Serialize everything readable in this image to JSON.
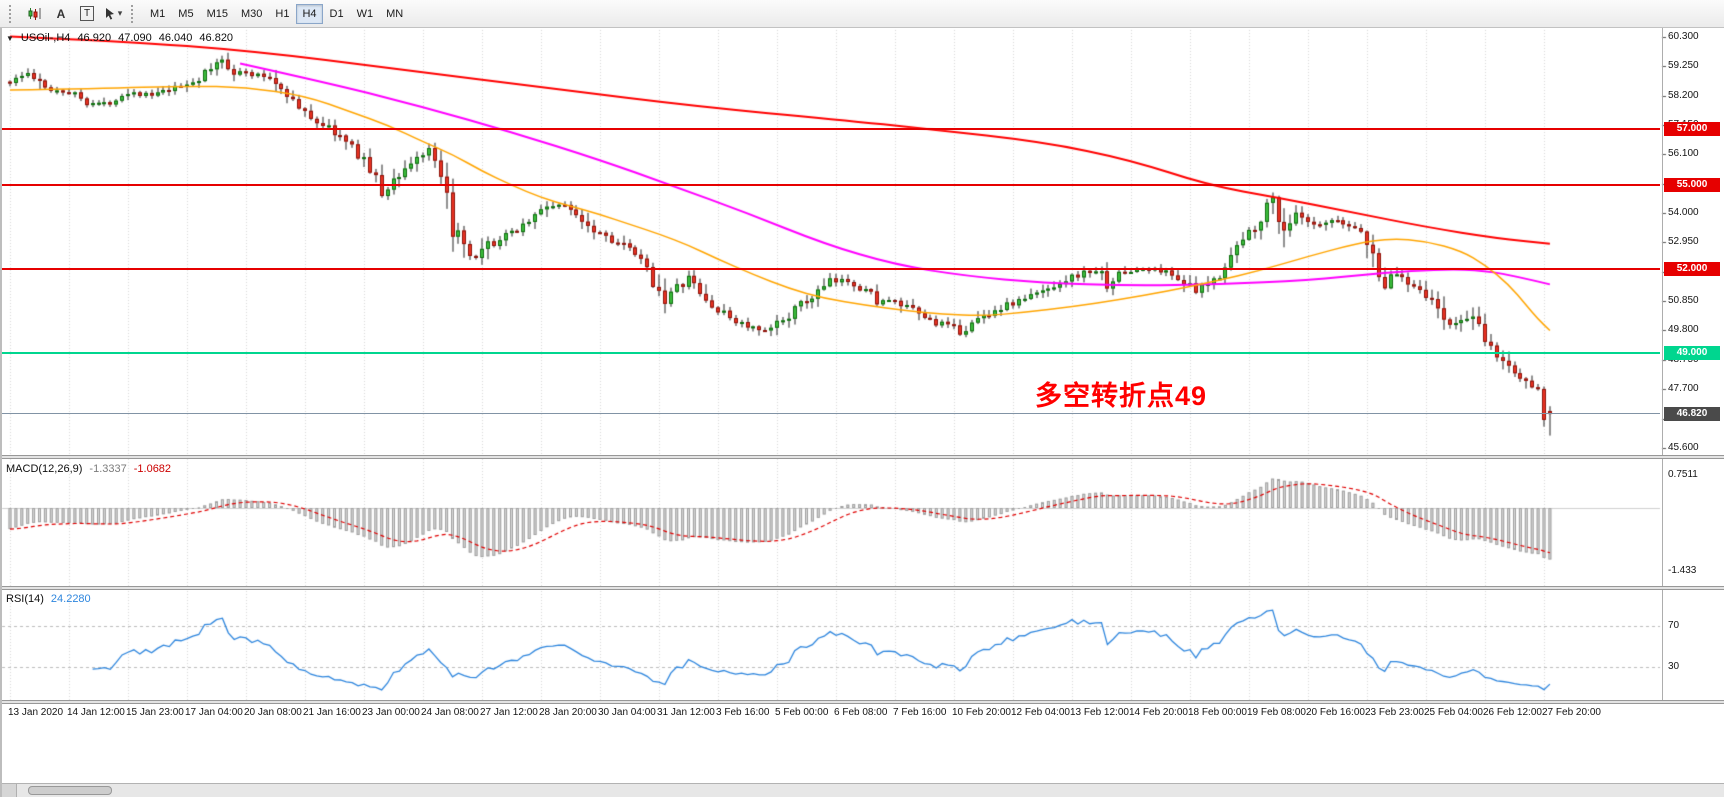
{
  "toolbar": {
    "icons": [
      {
        "name": "chart-icon"
      },
      {
        "name": "font-icon",
        "glyph": "A"
      },
      {
        "name": "text-label-icon",
        "glyph": "T"
      },
      {
        "name": "cursor-icon",
        "caret": "▾"
      }
    ],
    "timeframes": [
      {
        "label": "M1",
        "active": false
      },
      {
        "label": "M5",
        "active": false
      },
      {
        "label": "M15",
        "active": false
      },
      {
        "label": "M30",
        "active": false
      },
      {
        "label": "H1",
        "active": false
      },
      {
        "label": "H4",
        "active": true
      },
      {
        "label": "D1",
        "active": false
      },
      {
        "label": "W1",
        "active": false
      },
      {
        "label": "MN",
        "active": false
      }
    ]
  },
  "chart": {
    "header": {
      "marker": "▼",
      "title": "USOil-,H4",
      "open": "46.920",
      "high": "47.090",
      "low": "46.040",
      "close": "46.820"
    },
    "annotation": {
      "text": "多空转折点49",
      "color": "#ff0000"
    },
    "price_axis": {
      "ticks": [
        "60.300",
        "59.250",
        "58.200",
        "57.150",
        "56.100",
        "55.050",
        "54.000",
        "52.950",
        "51.900",
        "50.850",
        "49.800",
        "48.750",
        "47.700",
        "46.650",
        "45.600"
      ]
    },
    "levels": [
      {
        "price": 57.0,
        "label": "57.000",
        "color": "#e60000"
      },
      {
        "price": 55.0,
        "label": "55.000",
        "color": "#e60000"
      },
      {
        "price": 52.0,
        "label": "52.000",
        "color": "#e60000"
      },
      {
        "price": 49.0,
        "label": "49.000",
        "color": "#00d68f"
      }
    ],
    "current_price": {
      "value": 46.82,
      "label": "46.820",
      "bg": "#4a4a4a",
      "line_color": "#8193a5"
    },
    "time_axis": [
      "13 Jan 2020",
      "14 Jan 12:00",
      "15 Jan 23:00",
      "17 Jan 04:00",
      "20 Jan 08:00",
      "21 Jan 16:00",
      "23 Jan 00:00",
      "24 Jan 08:00",
      "27 Jan 12:00",
      "28 Jan 20:00",
      "30 Jan 04:00",
      "31 Jan 12:00",
      "3 Feb 16:00",
      "5 Feb 00:00",
      "6 Feb 08:00",
      "7 Feb 16:00",
      "10 Feb 20:00",
      "12 Feb 04:00",
      "13 Feb 12:00",
      "14 Feb 20:00",
      "18 Feb 00:00",
      "19 Feb 08:00",
      "20 Feb 16:00",
      "23 Feb 23:00",
      "25 Feb 04:00",
      "26 Feb 12:00",
      "27 Feb 20:00"
    ]
  },
  "indicators": {
    "macd": {
      "label": "MACD(12,26,9)",
      "value_main": "-1.3337",
      "value_signal": "-1.0682",
      "axis_ticks": [
        "0.7511",
        "-1.433"
      ],
      "params": {
        "fast": 12,
        "slow": 26,
        "signal": 9
      }
    },
    "rsi": {
      "label": "RSI(14)",
      "value": "24.2280",
      "levels": [
        70,
        30
      ],
      "axis_ticks": [
        "70",
        "30"
      ],
      "period": 14
    }
  },
  "colors": {
    "bull_fill": "#3dbd3d",
    "bull_stroke": "#0f6e0f",
    "bear_fill": "#ea3323",
    "bear_stroke": "#8d130b",
    "wick": "#222222",
    "grid": "#d9d9d9",
    "level_red": "#e60000",
    "level_green": "#00d68f",
    "ma_slow": "#ff0000",
    "ma_mid": "#ff00ff",
    "ma_fast": "#ffa500",
    "macd_fill": "#d8d8d8",
    "macd_stroke": "#a0a0a0",
    "macd_signal": "#e00000",
    "rsi_line": "#2e86de",
    "rsi_level": "#bbbbbb",
    "annotation": "#ff0000"
  },
  "chart_data": {
    "type": "candlestick",
    "symbol": "USOil-",
    "timeframe": "H4",
    "title": "USOil-,H4 46.920 47.090 46.040 46.820",
    "n_candles": 262,
    "y_range": [
      45.28,
      60.55
    ],
    "y_ticks": [
      60.3,
      59.25,
      58.2,
      57.15,
      56.1,
      55.05,
      54.0,
      52.95,
      51.9,
      50.85,
      49.8,
      48.75,
      47.7,
      46.65,
      45.6
    ],
    "h_levels": [
      57.0,
      55.0,
      52.0,
      49.0
    ],
    "current_price": 46.82,
    "last_ohlc": {
      "open": 46.92,
      "high": 47.09,
      "low": 46.04,
      "close": 46.82
    },
    "x_label_every_candles": 10,
    "price_path": [
      [
        0,
        58.7
      ],
      [
        3,
        59.0
      ],
      [
        6,
        58.45
      ],
      [
        10,
        58.35
      ],
      [
        13,
        58.0
      ],
      [
        16,
        57.9
      ],
      [
        20,
        58.35
      ],
      [
        24,
        58.2
      ],
      [
        28,
        58.45
      ],
      [
        32,
        58.8
      ],
      [
        36,
        59.5
      ],
      [
        38,
        59.1
      ],
      [
        41,
        58.95
      ],
      [
        44,
        58.85
      ],
      [
        47,
        58.3
      ],
      [
        49,
        57.7
      ],
      [
        52,
        57.3
      ],
      [
        55,
        56.9
      ],
      [
        58,
        56.3
      ],
      [
        60,
        55.95
      ],
      [
        63,
        54.7
      ],
      [
        66,
        55.4
      ],
      [
        69,
        56.0
      ],
      [
        71,
        56.2
      ],
      [
        73,
        55.0
      ],
      [
        75,
        53.6
      ],
      [
        77,
        52.55
      ],
      [
        79,
        52.3
      ],
      [
        81,
        52.8
      ],
      [
        84,
        53.15
      ],
      [
        88,
        53.75
      ],
      [
        91,
        54.25
      ],
      [
        93,
        54.3
      ],
      [
        96,
        54.0
      ],
      [
        99,
        53.45
      ],
      [
        103,
        52.95
      ],
      [
        106,
        52.5
      ],
      [
        109,
        51.6
      ],
      [
        111,
        50.95
      ],
      [
        113,
        51.3
      ],
      [
        115,
        51.65
      ],
      [
        118,
        50.85
      ],
      [
        120,
        50.5
      ],
      [
        123,
        50.15
      ],
      [
        126,
        49.85
      ],
      [
        128,
        49.7
      ],
      [
        130,
        50.05
      ],
      [
        133,
        50.55
      ],
      [
        136,
        51.0
      ],
      [
        139,
        51.5
      ],
      [
        142,
        51.6
      ],
      [
        145,
        51.25
      ],
      [
        147,
        50.9
      ],
      [
        150,
        50.8
      ],
      [
        153,
        50.5
      ],
      [
        156,
        50.15
      ],
      [
        159,
        49.95
      ],
      [
        161,
        49.75
      ],
      [
        163,
        50.05
      ],
      [
        166,
        50.45
      ],
      [
        169,
        50.7
      ],
      [
        172,
        50.95
      ],
      [
        175,
        51.2
      ],
      [
        178,
        51.55
      ],
      [
        181,
        51.8
      ],
      [
        184,
        51.95
      ],
      [
        186,
        51.5
      ],
      [
        189,
        51.9
      ],
      [
        192,
        52.0
      ],
      [
        195,
        51.95
      ],
      [
        198,
        51.7
      ],
      [
        201,
        51.15
      ],
      [
        204,
        51.6
      ],
      [
        207,
        52.5
      ],
      [
        210,
        53.3
      ],
      [
        212,
        53.9
      ],
      [
        214,
        54.5
      ],
      [
        216,
        53.45
      ],
      [
        218,
        53.9
      ],
      [
        220,
        53.6
      ],
      [
        222,
        53.5
      ],
      [
        224,
        53.7
      ],
      [
        226,
        53.6
      ],
      [
        229,
        53.4
      ],
      [
        231,
        52.35
      ],
      [
        233,
        51.5
      ],
      [
        235,
        51.85
      ],
      [
        237,
        51.55
      ],
      [
        239,
        51.35
      ],
      [
        241,
        50.8
      ],
      [
        243,
        50.2
      ],
      [
        245,
        49.95
      ],
      [
        247,
        50.35
      ],
      [
        249,
        49.8
      ],
      [
        251,
        49.1
      ],
      [
        253,
        48.7
      ],
      [
        255,
        48.3
      ],
      [
        257,
        47.9
      ],
      [
        259,
        47.8
      ],
      [
        260,
        46.98
      ],
      [
        261,
        46.82
      ]
    ],
    "ma_lines": [
      {
        "name": "ma-slow-red",
        "color": "#ff0000",
        "width": 2,
        "points": [
          [
            0,
            60.32
          ],
          [
            19,
            60.15
          ],
          [
            41,
            59.8
          ],
          [
            66,
            59.15
          ],
          [
            92,
            58.45
          ],
          [
            117,
            57.8
          ],
          [
            140,
            57.35
          ],
          [
            156,
            57.0
          ],
          [
            175,
            56.55
          ],
          [
            190,
            55.9
          ],
          [
            203,
            55.0
          ],
          [
            215,
            54.55
          ],
          [
            227,
            54.05
          ],
          [
            240,
            53.5
          ],
          [
            252,
            53.1
          ],
          [
            261,
            52.9
          ]
        ]
      },
      {
        "name": "ma-mid-magenta",
        "color": "#ff00ff",
        "width": 2,
        "points": [
          [
            39,
            59.35
          ],
          [
            55,
            58.6
          ],
          [
            70,
            57.8
          ],
          [
            85,
            56.9
          ],
          [
            100,
            55.9
          ],
          [
            112,
            55.0
          ],
          [
            125,
            54.0
          ],
          [
            138,
            52.9
          ],
          [
            150,
            52.15
          ],
          [
            162,
            51.75
          ],
          [
            175,
            51.5
          ],
          [
            190,
            51.4
          ],
          [
            205,
            51.45
          ],
          [
            220,
            51.6
          ],
          [
            232,
            51.85
          ],
          [
            243,
            52.0
          ],
          [
            250,
            51.95
          ],
          [
            256,
            51.7
          ],
          [
            261,
            51.45
          ]
        ]
      },
      {
        "name": "ma-fast-orange",
        "color": "#ffa500",
        "width": 1.5,
        "points": [
          [
            0,
            58.4
          ],
          [
            15,
            58.45
          ],
          [
            30,
            58.55
          ],
          [
            40,
            58.5
          ],
          [
            50,
            58.2
          ],
          [
            58,
            57.6
          ],
          [
            64,
            57.15
          ],
          [
            70,
            56.55
          ],
          [
            75,
            56.1
          ],
          [
            80,
            55.5
          ],
          [
            85,
            55.0
          ],
          [
            90,
            54.55
          ],
          [
            95,
            54.25
          ],
          [
            100,
            53.95
          ],
          [
            105,
            53.6
          ],
          [
            110,
            53.25
          ],
          [
            115,
            52.85
          ],
          [
            120,
            52.35
          ],
          [
            126,
            51.8
          ],
          [
            132,
            51.3
          ],
          [
            138,
            50.95
          ],
          [
            145,
            50.7
          ],
          [
            152,
            50.5
          ],
          [
            158,
            50.38
          ],
          [
            165,
            50.32
          ],
          [
            172,
            50.45
          ],
          [
            180,
            50.65
          ],
          [
            188,
            50.9
          ],
          [
            196,
            51.2
          ],
          [
            204,
            51.55
          ],
          [
            212,
            51.95
          ],
          [
            220,
            52.45
          ],
          [
            228,
            52.9
          ],
          [
            234,
            53.1
          ],
          [
            240,
            53.0
          ],
          [
            246,
            52.65
          ],
          [
            250,
            52.15
          ],
          [
            254,
            51.45
          ],
          [
            257,
            50.7
          ],
          [
            259,
            50.2
          ],
          [
            261,
            49.8
          ]
        ]
      }
    ]
  },
  "scrollbar": {
    "visible": true
  }
}
